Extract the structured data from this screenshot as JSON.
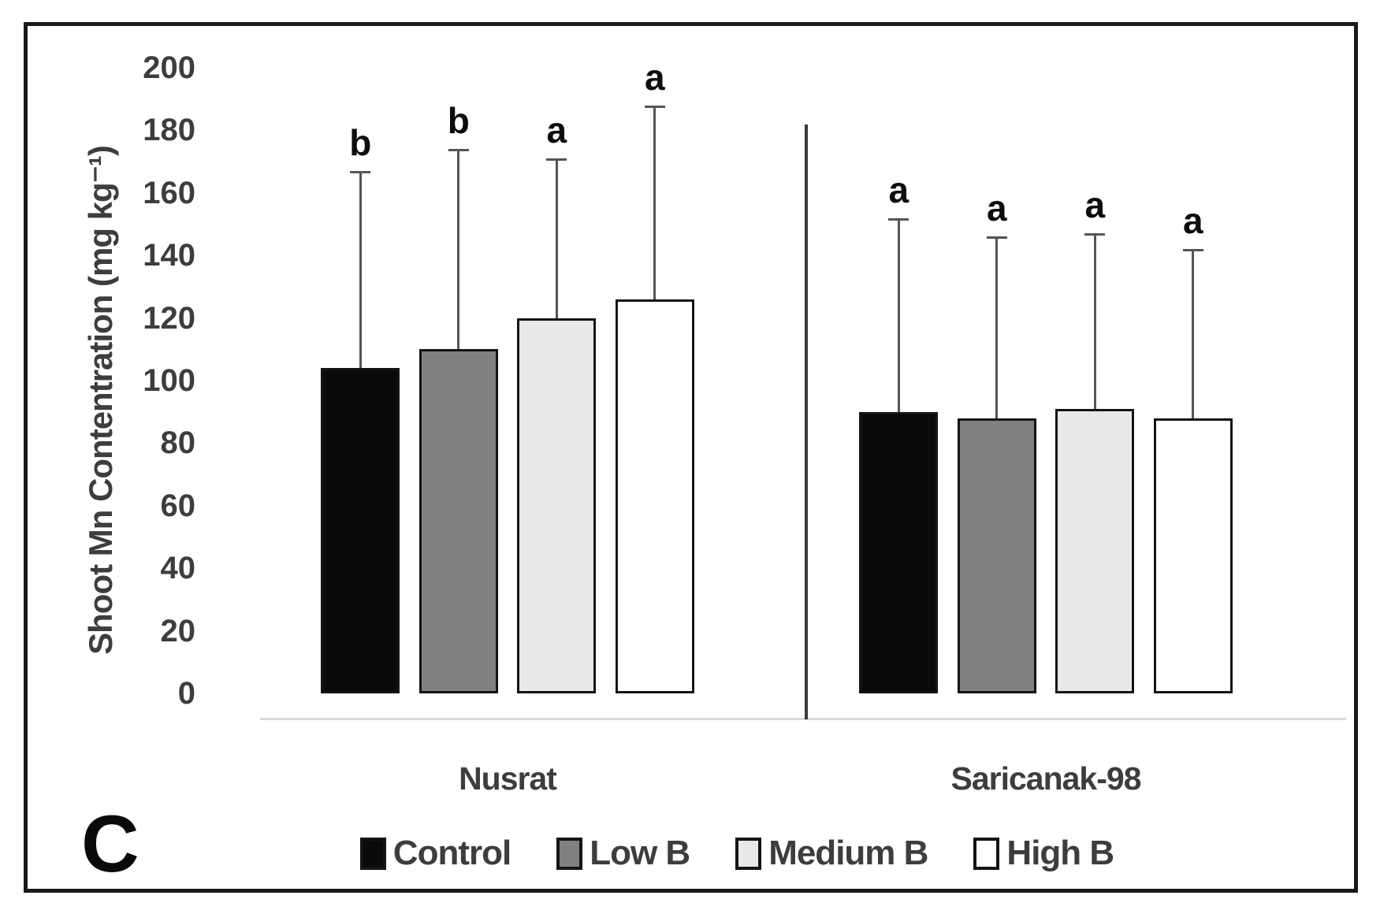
{
  "panel_label": "C",
  "chart_data": {
    "type": "bar",
    "title": "",
    "xlabel": "",
    "ylabel": "Shoot Mn Contentration (mg kg⁻¹)",
    "ylim": [
      0,
      200
    ],
    "ytick_step": 20,
    "grid": false,
    "legend_position": "bottom",
    "group_divider_between_categories": true,
    "categories": [
      "Nusrat",
      "Saricanak-98"
    ],
    "series": [
      {
        "name": "Control",
        "color": "#0a0a0a",
        "values": [
          104,
          90
        ],
        "error_bar_top": [
          167,
          152
        ],
        "sig_letters": [
          "b",
          "a"
        ]
      },
      {
        "name": "Low B",
        "color": "#808080",
        "values": [
          110,
          88
        ],
        "error_bar_top": [
          174,
          146
        ],
        "sig_letters": [
          "b",
          "a"
        ]
      },
      {
        "name": "Medium B",
        "color": "#e8e8e8",
        "values": [
          120,
          91
        ],
        "error_bar_top": [
          171,
          147
        ],
        "sig_letters": [
          "a",
          "a"
        ]
      },
      {
        "name": "High B",
        "color": "#ffffff",
        "values": [
          126,
          88
        ],
        "error_bar_top": [
          188,
          142
        ],
        "sig_letters": [
          "a",
          "a"
        ]
      }
    ]
  }
}
